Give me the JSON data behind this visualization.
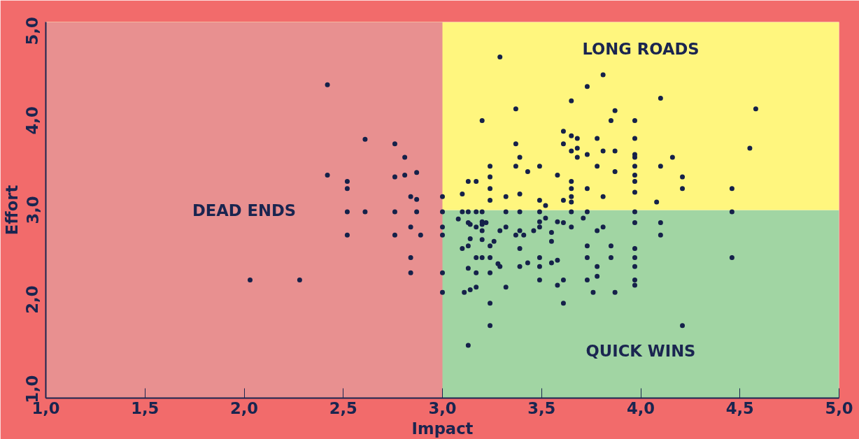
{
  "chart_data": {
    "type": "scatter",
    "xlabel": "Impact",
    "ylabel": "Effort",
    "xlim": [
      1,
      5
    ],
    "ylim": [
      0.9,
      5.1
    ],
    "xticks": [
      {
        "value": 1,
        "label": "1,0"
      },
      {
        "value": 1.5,
        "label": "1,5"
      },
      {
        "value": 2,
        "label": "2,0"
      },
      {
        "value": 2.5,
        "label": "2,5"
      },
      {
        "value": 3,
        "label": "3,0"
      },
      {
        "value": 3.5,
        "label": "3,5"
      },
      {
        "value": 4,
        "label": "4,0"
      },
      {
        "value": 4.5,
        "label": "4,5"
      },
      {
        "value": 5,
        "label": "5,0"
      }
    ],
    "yticks": [
      {
        "value": 1,
        "label": "1,0"
      },
      {
        "value": 2,
        "label": "2,0"
      },
      {
        "value": 3,
        "label": "3,0"
      },
      {
        "value": 4,
        "label": "4,0"
      },
      {
        "value": 5,
        "label": "5,0"
      }
    ],
    "grid": false,
    "marker": "circle",
    "bands": [
      {
        "axis": "y",
        "from": 0.9,
        "to": 3,
        "color": "#a1d5a3",
        "label": "QUICK WINS"
      },
      {
        "axis": "y",
        "from": 3,
        "to": 5.1,
        "color": "#fff67e",
        "label": "LONG ROADS"
      },
      {
        "axis": "x",
        "from": 1,
        "to": 3,
        "color": "#e89090",
        "label": "DEAD ENDS"
      }
    ],
    "series": [
      {
        "color": "#15214a",
        "x": [
          2.42,
          2.61,
          2.76,
          2.81,
          2.42,
          2.76,
          2.81,
          2.87,
          2.52,
          2.52,
          2.84,
          2.87,
          2.52,
          2.61,
          2.76,
          2.87,
          2.84,
          2.52,
          2.76,
          2.89,
          2.84,
          2.84,
          2.03,
          2.28,
          3.29,
          3.37,
          3.2,
          3.61,
          3.37,
          3.61,
          3.39,
          3.24,
          3.37,
          3.49,
          3.43,
          3.58,
          3.24,
          3.13,
          3.17,
          3.24,
          3.0,
          3.1,
          3.32,
          3.39,
          3.24,
          3.49,
          3.61,
          3.52,
          3.0,
          3.1,
          3.13,
          3.17,
          3.2,
          3.32,
          3.39,
          3.49,
          3.08,
          3.13,
          3.14,
          3.2,
          3.22,
          3.2,
          3.17,
          3.2,
          3.0,
          3.0,
          3.32,
          3.29,
          3.39,
          3.37,
          3.41,
          3.46,
          3.49,
          3.49,
          3.52,
          3.55,
          3.58,
          3.61,
          3.14,
          3.2,
          3.1,
          3.13,
          3.24,
          3.26,
          3.39,
          3.55,
          3.17,
          3.2,
          3.24,
          3.49,
          3.28,
          3.29,
          3.39,
          3.43,
          3.49,
          3.55,
          3.58,
          3.13,
          3.0,
          3.17,
          3.24,
          3.49,
          3.61,
          3.58,
          3.17,
          3.14,
          3.11,
          3.0,
          3.32,
          3.24,
          3.61,
          3.24,
          3.13,
          3.81,
          3.73,
          3.65,
          4.1,
          4.58,
          3.87,
          3.85,
          3.97,
          3.65,
          3.68,
          3.78,
          3.97,
          3.65,
          3.68,
          3.68,
          3.73,
          3.81,
          3.87,
          3.97,
          3.97,
          4.16,
          4.55,
          3.78,
          3.87,
          3.97,
          4.1,
          3.97,
          4.21,
          3.65,
          3.97,
          3.65,
          3.73,
          3.97,
          4.21,
          4.46,
          3.65,
          3.65,
          3.81,
          4.08,
          3.65,
          3.73,
          3.97,
          4.46,
          3.71,
          3.65,
          3.78,
          3.81,
          3.97,
          4.1,
          4.1,
          3.73,
          3.85,
          3.97,
          3.73,
          3.85,
          3.97,
          4.46,
          3.78,
          3.97,
          3.78,
          3.73,
          3.97,
          3.97,
          3.76,
          3.87,
          4.21
        ],
        "values": [
          4.4,
          3.79,
          3.74,
          3.59,
          3.39,
          3.37,
          3.39,
          3.42,
          3.32,
          3.24,
          3.15,
          3.12,
          2.98,
          2.98,
          2.98,
          2.98,
          2.81,
          2.72,
          2.72,
          2.72,
          2.47,
          2.3,
          2.22,
          2.22,
          4.71,
          4.13,
          4.0,
          3.88,
          3.74,
          3.74,
          3.59,
          3.49,
          3.49,
          3.49,
          3.43,
          3.39,
          3.37,
          3.32,
          3.32,
          3.24,
          3.15,
          3.18,
          3.15,
          3.18,
          3.11,
          3.11,
          3.11,
          3.05,
          2.98,
          2.98,
          2.98,
          2.98,
          2.98,
          2.98,
          2.98,
          2.98,
          2.9,
          2.86,
          2.84,
          2.87,
          2.86,
          2.84,
          2.81,
          2.77,
          2.81,
          2.72,
          2.81,
          2.77,
          2.77,
          2.72,
          2.72,
          2.77,
          2.87,
          2.81,
          2.91,
          2.75,
          2.87,
          2.86,
          2.68,
          2.67,
          2.57,
          2.6,
          2.6,
          2.65,
          2.57,
          2.65,
          2.47,
          2.47,
          2.47,
          2.47,
          2.4,
          2.37,
          2.37,
          2.41,
          2.37,
          2.41,
          2.44,
          2.35,
          2.3,
          2.3,
          2.3,
          2.22,
          2.22,
          2.16,
          2.14,
          2.11,
          2.08,
          2.08,
          2.14,
          1.96,
          1.96,
          1.71,
          1.49,
          4.51,
          4.38,
          4.22,
          4.25,
          4.13,
          4.11,
          4.0,
          4.0,
          3.83,
          3.8,
          3.8,
          3.8,
          3.66,
          3.69,
          3.59,
          3.62,
          3.66,
          3.66,
          3.62,
          3.59,
          3.59,
          3.69,
          3.49,
          3.43,
          3.49,
          3.49,
          3.39,
          3.37,
          3.32,
          3.32,
          3.24,
          3.24,
          3.2,
          3.24,
          3.24,
          3.15,
          3.09,
          3.15,
          3.09,
          2.98,
          2.98,
          2.98,
          2.98,
          2.91,
          2.81,
          2.77,
          2.81,
          2.86,
          2.86,
          2.72,
          2.6,
          2.6,
          2.57,
          2.47,
          2.47,
          2.47,
          2.47,
          2.37,
          2.37,
          2.26,
          2.22,
          2.22,
          2.16,
          2.08,
          2.08,
          1.71
        ]
      }
    ]
  }
}
